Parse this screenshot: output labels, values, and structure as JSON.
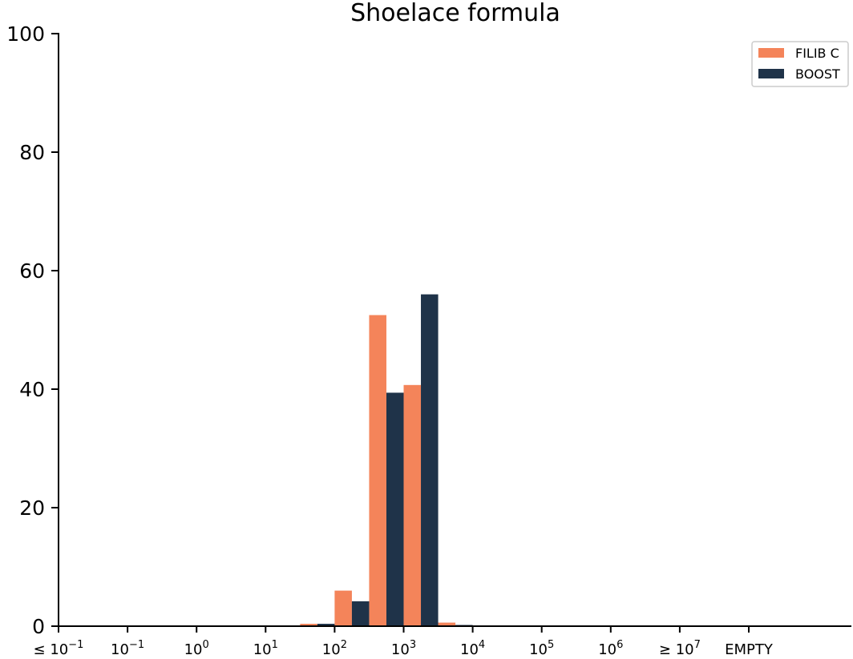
{
  "chart_data": {
    "type": "bar",
    "title": "Shoelace formula",
    "xlabel": "",
    "ylabel": "",
    "ylim": [
      0,
      100
    ],
    "yticks": [
      0,
      20,
      40,
      60,
      80,
      100
    ],
    "grid": false,
    "legend_position": "top-right",
    "xticks": [
      {
        "base": "≤ 10",
        "exp": "−1",
        "at": 0
      },
      {
        "base": "10",
        "exp": "−1",
        "at": 1
      },
      {
        "base": "10",
        "exp": "0",
        "at": 2
      },
      {
        "base": "10",
        "exp": "1",
        "at": 3
      },
      {
        "base": "10",
        "exp": "2",
        "at": 4
      },
      {
        "base": "10",
        "exp": "3",
        "at": 5
      },
      {
        "base": "10",
        "exp": "4",
        "at": 6
      },
      {
        "base": "10",
        "exp": "5",
        "at": 7
      },
      {
        "base": "10",
        "exp": "6",
        "at": 8
      },
      {
        "base": "≥ 10",
        "exp": "7",
        "at": 9
      },
      {
        "base": "EMPTY",
        "exp": "",
        "at": 10
      }
    ],
    "bin_edges": [
      0,
      0.5,
      1,
      1.5,
      2,
      2.5,
      3,
      3.5,
      4,
      4.5,
      5,
      5.5,
      6,
      6.5,
      7,
      7.5,
      8,
      8.5,
      9,
      9.5,
      10,
      10.5,
      11,
      11.5,
      12
    ],
    "series": [
      {
        "name": "FILIB C",
        "color": "#f4845a",
        "values": [
          0,
          0,
          0,
          0,
          0,
          0,
          0,
          0.4,
          6,
          52.5,
          40.7,
          0.6,
          0,
          0,
          0,
          0,
          0,
          0,
          0,
          0,
          0,
          0,
          0,
          0
        ]
      },
      {
        "name": "BOOST",
        "color": "#1f3349",
        "values": [
          0,
          0,
          0,
          0,
          0,
          0,
          0,
          0.4,
          4.2,
          39.4,
          56.0,
          0.2,
          0,
          0,
          0,
          0,
          0,
          0,
          0,
          0,
          0,
          0,
          0,
          0
        ]
      }
    ]
  }
}
